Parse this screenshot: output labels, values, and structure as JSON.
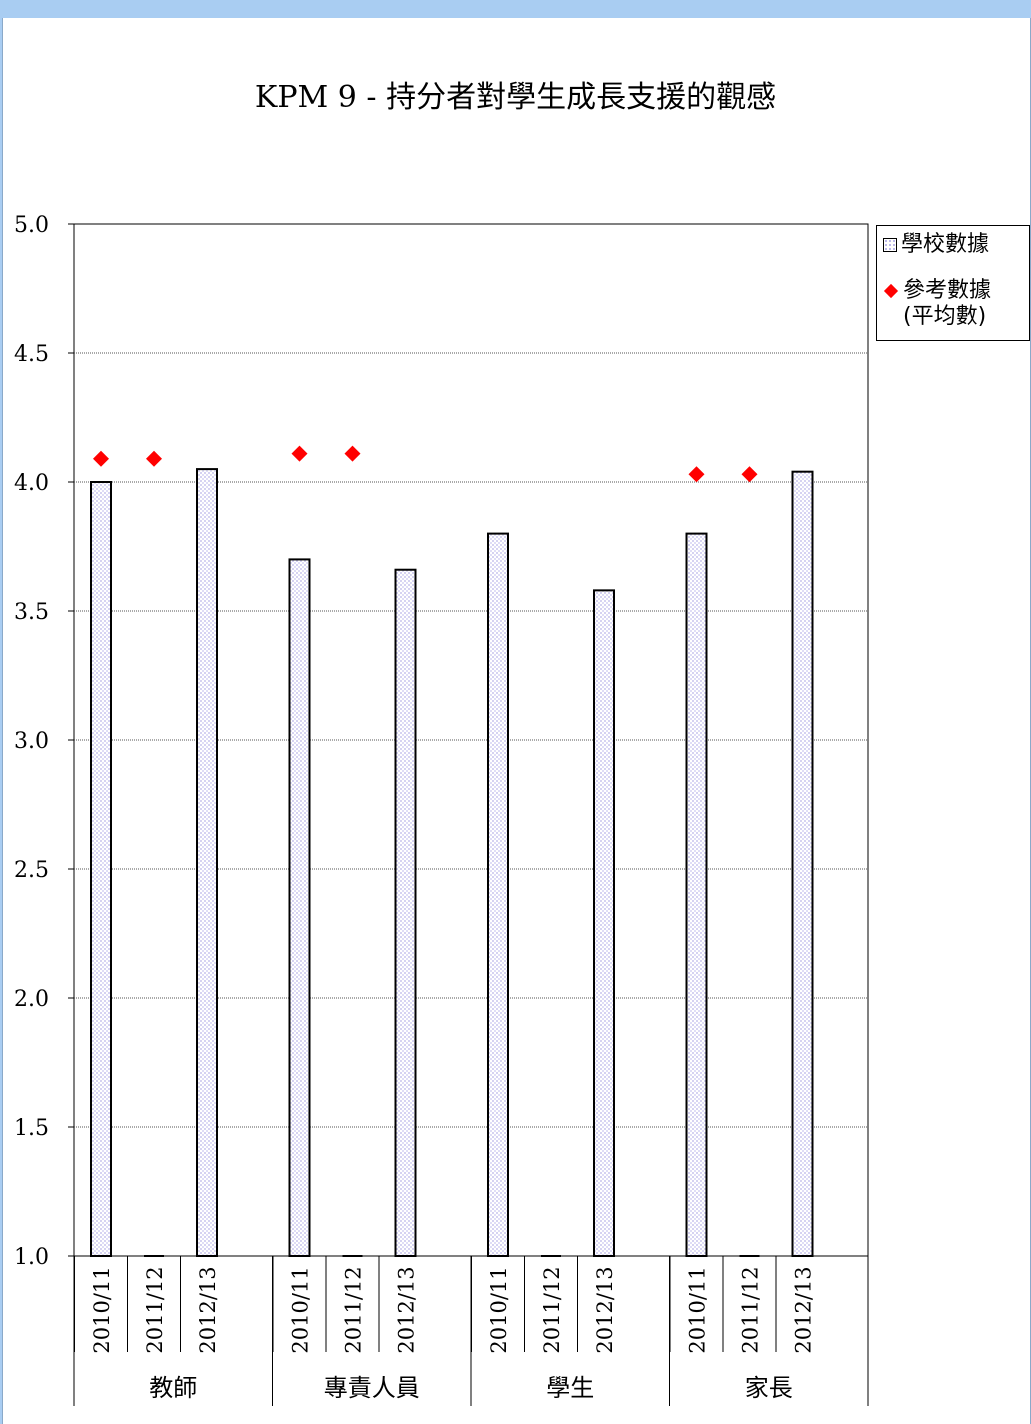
{
  "chart_data": {
    "type": "bar",
    "title": "KPM 9 - 持分者對學生成長支援的觀感",
    "groups": [
      "教師",
      "專責人員",
      "學生",
      "家長"
    ],
    "years": [
      "2010/11",
      "2011/12",
      "2012/13"
    ],
    "ylim": [
      1.0,
      5.0
    ],
    "yticks": [
      "5.0",
      "4.5",
      "4.0",
      "3.5",
      "3.0",
      "2.5",
      "2.0",
      "1.5",
      "1.0"
    ],
    "grid": true,
    "legend_position": "right-top",
    "series": [
      {
        "name": "學校數據",
        "kind": "bar",
        "values": [
          [
            4.0,
            null,
            4.05
          ],
          [
            3.7,
            null,
            3.66
          ],
          [
            3.8,
            null,
            3.58
          ],
          [
            3.8,
            null,
            4.04
          ]
        ]
      },
      {
        "name": "參考數據\n(平均數)",
        "kind": "marker",
        "color": "#ff0000",
        "values": [
          [
            4.09,
            4.09,
            null
          ],
          [
            4.11,
            4.11,
            null
          ],
          [
            null,
            null,
            null
          ],
          [
            4.03,
            4.03,
            null
          ]
        ]
      }
    ]
  },
  "colors": {
    "page_background": "#a9cdf2",
    "bar_fill_dots": "#b7b3e8",
    "marker": "#ff0000"
  }
}
